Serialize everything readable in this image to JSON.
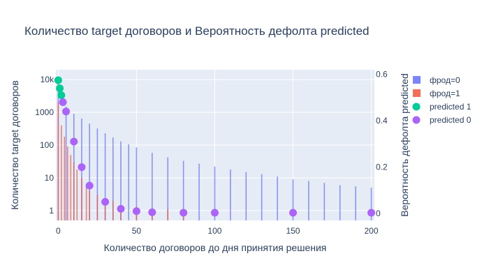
{
  "chart_data": {
    "type": "bar",
    "title": "Количество target договоров и Вероятность дефолта predicted",
    "xlabel": "Количество договоров до дня принятия решения",
    "ylabel": "Количество target договоров",
    "y2label": "Вероятность дефолта predicted",
    "xlim": [
      -1.5,
      202
    ],
    "ylim_log10": [
      -0.3,
      4.3
    ],
    "y2lim": [
      -0.03,
      0.62
    ],
    "y_scale": "log",
    "x_ticks": [
      0,
      50,
      100,
      150,
      200
    ],
    "x_tick_labels": [
      "0",
      "50",
      "100",
      "150",
      "200"
    ],
    "y_ticks": [
      1,
      10,
      100,
      1000,
      10000
    ],
    "y_tick_labels": [
      "1",
      "10",
      "100",
      "1000",
      "10k"
    ],
    "y2_ticks": [
      0,
      0.2,
      0.4,
      0.6
    ],
    "y2_tick_labels": [
      "0",
      "0.2",
      "0.4",
      "0.6"
    ],
    "grid": true,
    "legend_position": "right",
    "series": [
      {
        "name": "фрод=0",
        "kind": "bar",
        "axis": "y",
        "color": "#636efa",
        "x": [
          0,
          5,
          10,
          15,
          20,
          25,
          30,
          35,
          40,
          45,
          50,
          60,
          70,
          80,
          90,
          100,
          110,
          120,
          130,
          140,
          150,
          160,
          170,
          180,
          190,
          200
        ],
        "values": [
          8000,
          1500,
          900,
          650,
          450,
          320,
          230,
          170,
          130,
          105,
          85,
          58,
          42,
          33,
          27,
          22,
          18,
          15,
          13,
          11,
          9,
          8,
          7,
          6,
          5.5,
          5
        ]
      },
      {
        "name": "фрод=1",
        "kind": "bar",
        "axis": "y",
        "color": "#ef553b",
        "x": [
          0,
          2,
          4,
          6,
          8,
          10,
          12,
          15,
          18,
          20,
          25,
          30,
          35,
          40,
          50,
          60,
          70,
          80
        ],
        "values": [
          2000,
          400,
          180,
          90,
          50,
          30,
          18,
          10,
          6,
          4,
          3,
          2,
          2,
          1.5,
          1.3,
          1.2,
          1.1,
          1.1
        ]
      },
      {
        "name": "predicted 1",
        "kind": "scatter",
        "axis": "y2",
        "color": "#00cc96",
        "x": [
          0,
          1,
          2
        ],
        "values": [
          0.575,
          0.54,
          0.51
        ]
      },
      {
        "name": "predicted 0",
        "kind": "scatter",
        "axis": "y2",
        "color": "#ab63fa",
        "x": [
          3,
          5,
          10,
          15,
          20,
          30,
          40,
          50,
          60,
          80,
          100,
          150,
          200
        ],
        "values": [
          0.48,
          0.44,
          0.31,
          0.2,
          0.12,
          0.05,
          0.02,
          0.01,
          0.005,
          0.003,
          0.003,
          0.003,
          0.003
        ]
      }
    ]
  }
}
